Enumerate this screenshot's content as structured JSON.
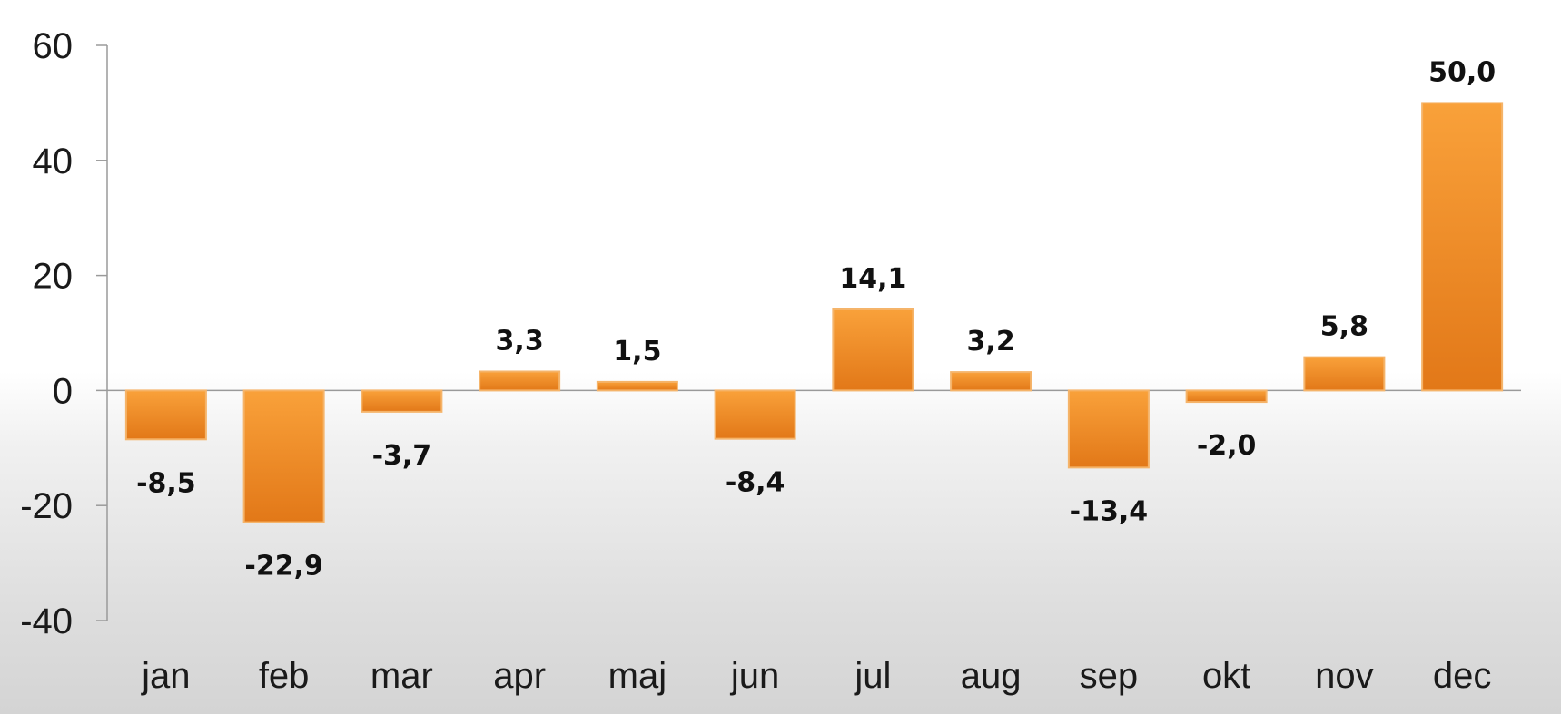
{
  "chart_data": {
    "type": "bar",
    "title": "",
    "xlabel": "",
    "ylabel": "",
    "categories": [
      "jan",
      "feb",
      "mar",
      "apr",
      "maj",
      "jun",
      "jul",
      "aug",
      "sep",
      "okt",
      "nov",
      "dec"
    ],
    "values": [
      -8.5,
      -22.9,
      -3.7,
      3.3,
      1.5,
      -8.4,
      14.1,
      3.2,
      -13.4,
      -2.0,
      5.8,
      50.0
    ],
    "data_labels": [
      "-8,5",
      "-22,9",
      "-3,7",
      "3,3",
      "1,5",
      "-8,4",
      "14,1",
      "3,2",
      "-13,4",
      "-2,0",
      "5,8",
      "50,0"
    ],
    "ylim": [
      -40,
      60
    ],
    "yticks": [
      -40,
      -20,
      0,
      20,
      40,
      60
    ],
    "ytick_labels": [
      "-40",
      "-20",
      "0",
      "20",
      "40",
      "60"
    ],
    "grid": false,
    "legend": "none",
    "colors": {
      "bar_top": "#f9a13a",
      "bar_bottom": "#e27818",
      "bar_edge": "#f5b46a",
      "axis": "#9a9a9a"
    }
  }
}
